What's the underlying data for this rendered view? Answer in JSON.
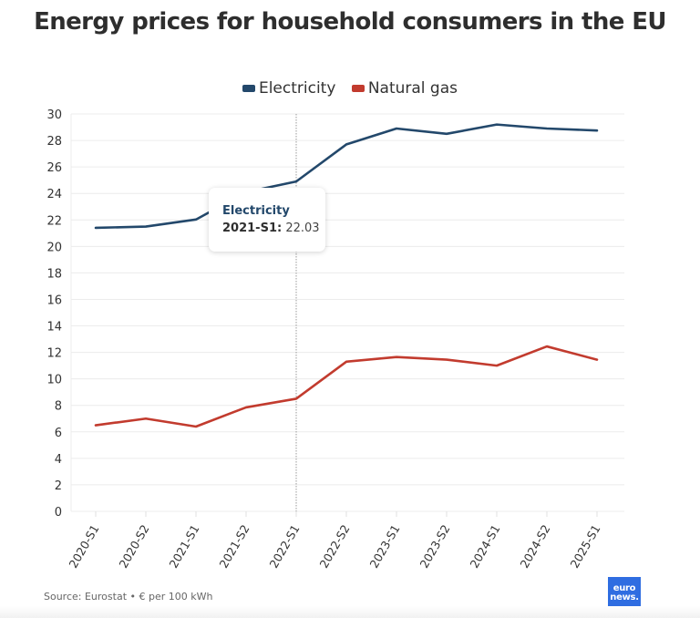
{
  "chart_data": {
    "type": "line",
    "title": "Energy prices for household consumers in the EU",
    "xlabel": "",
    "ylabel": "",
    "categories": [
      "2020-S1",
      "2020-S2",
      "2021-S1",
      "2021-S2",
      "2022-S1",
      "2022-S2",
      "2023-S1",
      "2023-S2",
      "2024-S1",
      "2024-S2",
      "2025-S1"
    ],
    "series": [
      {
        "name": "Electricity",
        "color": "#23486b",
        "values": [
          21.4,
          21.5,
          22.03,
          24.1,
          24.9,
          27.7,
          28.9,
          28.5,
          29.2,
          28.9,
          28.75
        ]
      },
      {
        "name": "Natural gas",
        "color": "#c23b2e",
        "values": [
          6.5,
          7.0,
          6.4,
          7.85,
          8.5,
          11.3,
          11.65,
          11.45,
          11.0,
          12.45,
          11.45
        ]
      }
    ],
    "ylim": [
      0,
      30
    ],
    "yticks": [
      0,
      2,
      4,
      6,
      8,
      10,
      12,
      14,
      16,
      18,
      20,
      22,
      24,
      26,
      28,
      30
    ],
    "grid": true,
    "legend_position": "top-center",
    "crosshair_category": "2022-S1",
    "tooltip": {
      "series": "Electricity",
      "category": "2021-S1",
      "category_label": "2021-S1:",
      "value": "22.03"
    }
  },
  "footer": {
    "source": "Source: Eurostat • € per 100 kWh"
  },
  "logo": {
    "line1": "euro",
    "line2": "news."
  },
  "colors": {
    "electricity": "#23486b",
    "gas": "#c23b2e",
    "grid": "#ececec",
    "text": "#2e2e2e"
  }
}
